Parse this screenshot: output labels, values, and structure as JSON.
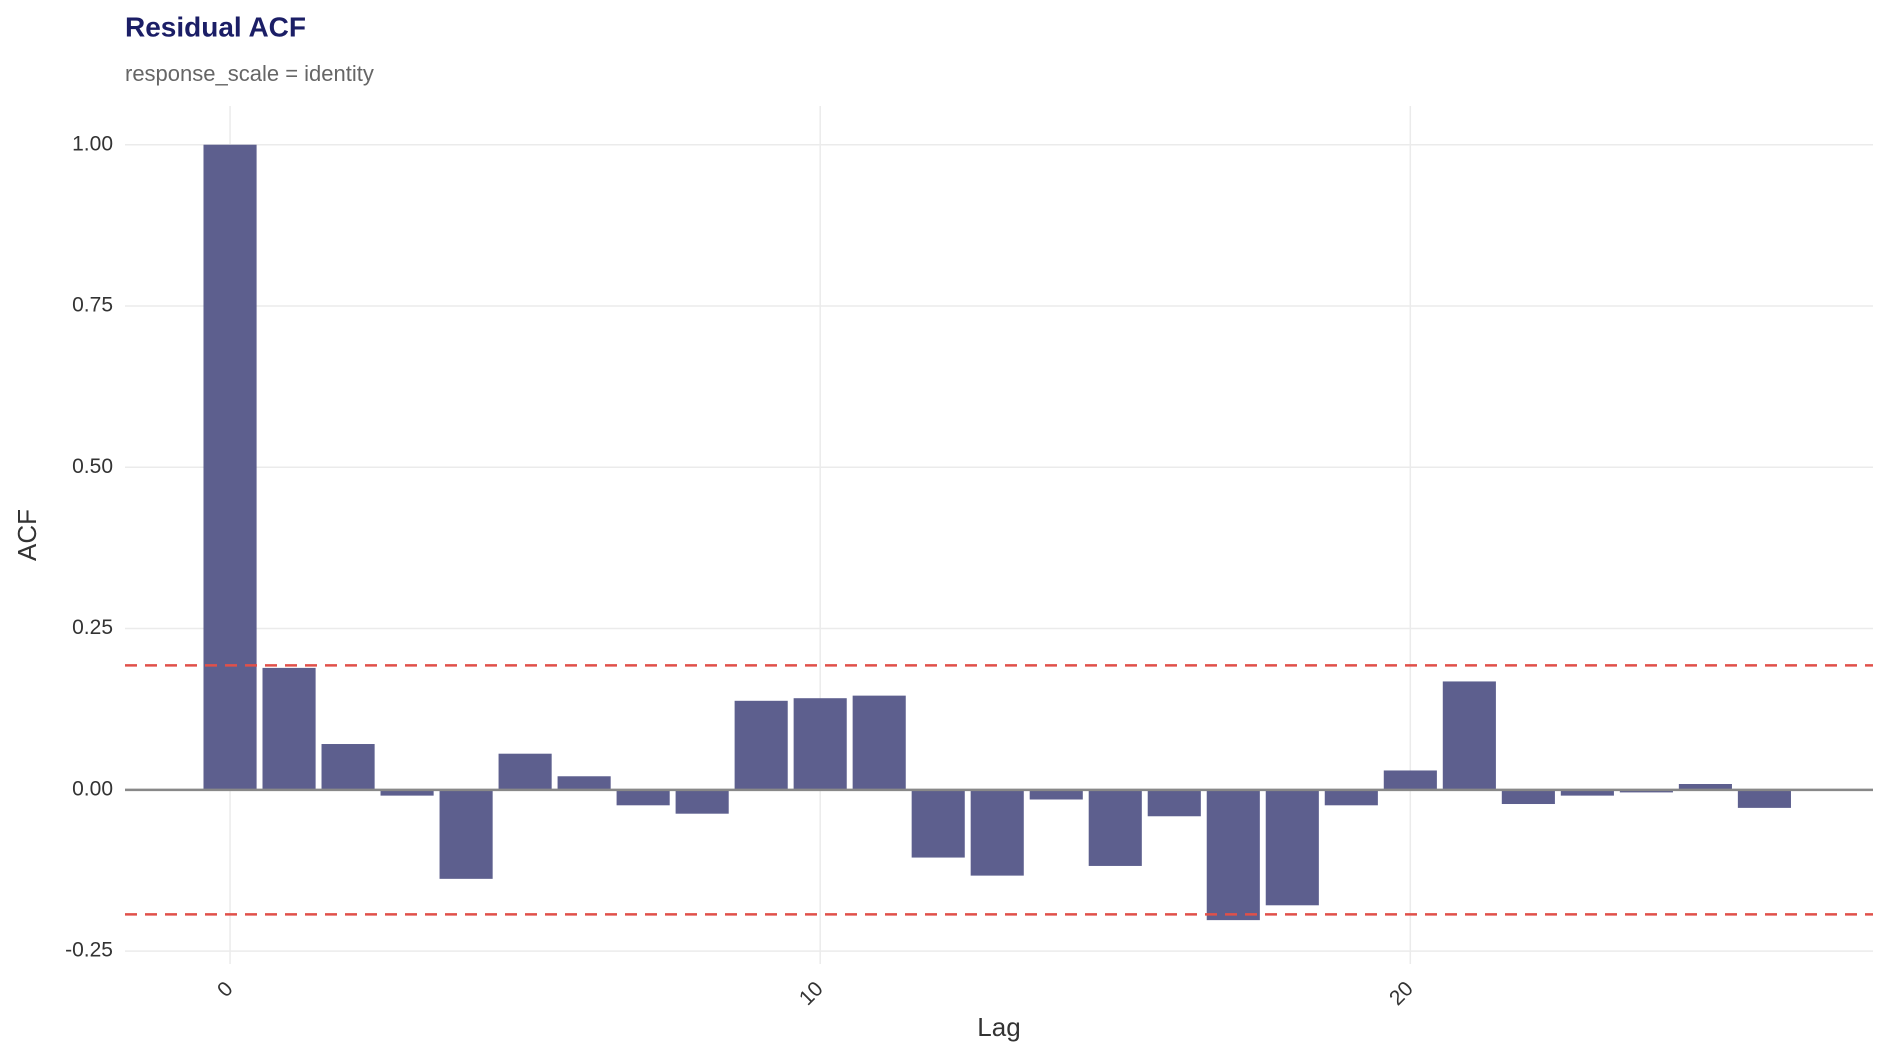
{
  "chart_data": {
    "type": "bar",
    "title": "Residual ACF",
    "subtitle": "response_scale = identity",
    "x_label": "Lag",
    "y_label": "ACF",
    "x": [
      0,
      1,
      2,
      3,
      4,
      5,
      6,
      7,
      8,
      9,
      10,
      11,
      12,
      13,
      14,
      15,
      16,
      17,
      18,
      19,
      20,
      21,
      22,
      23,
      24,
      25,
      26
    ],
    "values": [
      1.0,
      0.189,
      0.071,
      -0.009,
      -0.138,
      0.056,
      0.021,
      -0.024,
      -0.037,
      0.138,
      0.142,
      0.146,
      -0.105,
      -0.133,
      -0.015,
      -0.118,
      -0.041,
      -0.202,
      -0.179,
      -0.024,
      0.03,
      0.168,
      -0.022,
      -0.009,
      -0.004,
      0.009,
      -0.028
    ],
    "color": "#5d5f8e",
    "confidence_limits": [
      0.193,
      -0.193
    ],
    "confidence_color": "#e0504a",
    "xlim": [
      -1.78,
      27.84
    ],
    "ylim": [
      -0.27,
      1.06
    ],
    "xticks": [
      0,
      10,
      20
    ],
    "yticks": [
      {
        "value": -0.25,
        "label": "-0.25"
      },
      {
        "value": 0,
        "label": "0.00"
      },
      {
        "value": 0.25,
        "label": "0.25"
      },
      {
        "value": 0.5,
        "label": "0.50"
      },
      {
        "value": 0.75,
        "label": "0.75"
      },
      {
        "value": 1,
        "label": "1.00"
      }
    ],
    "grid": true
  }
}
